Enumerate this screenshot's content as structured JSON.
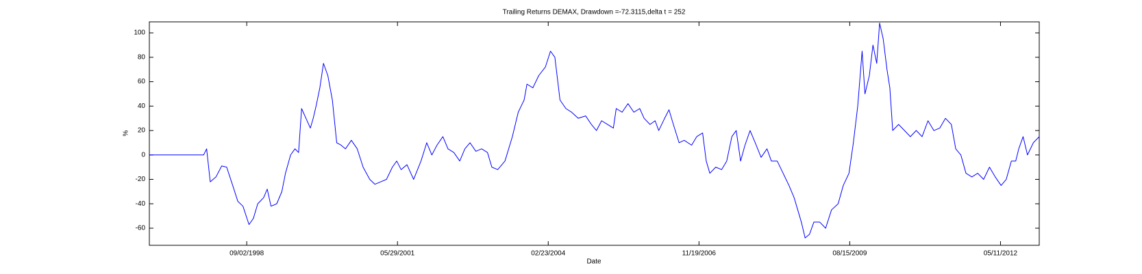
{
  "chart_data": {
    "type": "line",
    "title": "Trailing Returns DEMAX, Drawdown =-72.3115,delta t = 252",
    "xlabel": "Date",
    "ylabel": "%",
    "x": [
      "1996-11-25",
      "1997-11-20",
      "1997-12-10",
      "1998-01-03",
      "1998-02-10",
      "1998-03-20",
      "1998-04-22",
      "1998-06-01",
      "1998-07-05",
      "1998-08-08",
      "1998-09-17",
      "1998-10-16",
      "1998-11-14",
      "1998-12-23",
      "1999-01-16",
      "1999-02-10",
      "1999-03-20",
      "1999-04-23",
      "1999-05-17",
      "1999-06-20",
      "1999-07-19",
      "1999-08-12",
      "1999-09-01",
      "1999-09-30",
      "1999-10-29",
      "1999-11-17",
      "1999-12-06",
      "1999-12-31",
      "2000-01-24",
      "2000-02-22",
      "2000-03-23",
      "2000-04-21",
      "2000-05-20",
      "2000-06-18",
      "2000-07-27",
      "2000-09-04",
      "2000-10-13",
      "2000-11-26",
      "2000-12-30",
      "2001-02-07",
      "2001-03-17",
      "2001-04-25",
      "2001-05-24",
      "2001-06-22",
      "2001-07-31",
      "2001-09-13",
      "2001-11-01",
      "2001-12-09",
      "2002-01-12",
      "2002-02-15",
      "2002-03-26",
      "2002-04-29",
      "2002-06-07",
      "2002-07-16",
      "2002-08-19",
      "2002-09-22",
      "2002-10-31",
      "2002-12-08",
      "2003-01-16",
      "2003-02-14",
      "2003-03-25",
      "2003-05-12",
      "2003-06-30",
      "2003-08-08",
      "2003-09-16",
      "2003-10-05",
      "2003-11-13",
      "2003-12-22",
      "2004-02-04",
      "2004-03-09",
      "2004-04-07",
      "2004-05-11",
      "2004-06-19",
      "2004-07-27",
      "2004-09-09",
      "2004-10-28",
      "2004-12-05",
      "2005-01-08",
      "2005-02-11",
      "2005-03-22",
      "2005-04-30",
      "2005-05-19",
      "2005-06-27",
      "2005-08-05",
      "2005-09-13",
      "2005-10-22",
      "2005-11-20",
      "2005-12-29",
      "2006-02-01",
      "2006-02-25",
      "2006-04-05",
      "2006-05-04",
      "2006-06-02",
      "2006-07-10",
      "2006-08-13",
      "2006-10-01",
      "2006-11-04",
      "2006-12-13",
      "2007-01-06",
      "2007-01-30",
      "2007-03-10",
      "2007-04-18",
      "2007-05-22",
      "2007-06-25",
      "2007-07-24",
      "2007-08-22",
      "2007-09-20",
      "2007-10-24",
      "2007-11-27",
      "2008-01-05",
      "2008-02-13",
      "2008-03-13",
      "2008-04-21",
      "2008-05-30",
      "2008-07-08",
      "2008-08-11",
      "2008-09-04",
      "2008-09-28",
      "2008-10-23",
      "2008-11-21",
      "2008-12-20",
      "2009-01-28",
      "2009-03-08",
      "2009-04-16",
      "2009-05-30",
      "2009-07-03",
      "2009-08-10",
      "2009-09-08",
      "2009-10-07",
      "2009-11-05",
      "2009-11-24",
      "2009-12-23",
      "2010-01-16",
      "2010-02-10",
      "2010-03-01",
      "2010-03-25",
      "2010-04-19",
      "2010-05-08",
      "2010-05-27",
      "2010-07-05",
      "2010-08-13",
      "2010-09-21",
      "2010-10-30",
      "2010-12-08",
      "2011-01-16",
      "2011-02-24",
      "2011-04-04",
      "2011-05-12",
      "2011-06-20",
      "2011-07-19",
      "2011-08-22",
      "2011-09-25",
      "2011-11-03",
      "2011-12-12",
      "2012-01-20",
      "2012-02-28",
      "2012-04-06",
      "2012-05-15",
      "2012-06-18",
      "2012-07-22",
      "2012-08-20",
      "2012-09-09",
      "2012-10-08",
      "2012-11-06",
      "2012-12-15",
      "2013-01-23"
    ],
    "series": [
      {
        "color": "#0000ff",
        "values": [
          0,
          0,
          5,
          -22,
          -18,
          -9,
          -10,
          -25,
          -38,
          -42,
          -57,
          -52,
          -40,
          -35,
          -28,
          -42,
          -40,
          -30,
          -15,
          0,
          5,
          2,
          38,
          30,
          22,
          30,
          40,
          55,
          75,
          65,
          45,
          10,
          8,
          5,
          12,
          5,
          -10,
          -20,
          -24,
          -22,
          -20,
          -10,
          -5,
          -12,
          -8,
          -20,
          -5,
          10,
          0,
          8,
          15,
          5,
          2,
          -5,
          5,
          10,
          3,
          5,
          2,
          -10,
          -12,
          -5,
          15,
          35,
          45,
          58,
          55,
          65,
          72,
          85,
          80,
          45,
          38,
          35,
          30,
          32,
          25,
          20,
          28,
          25,
          22,
          38,
          35,
          42,
          35,
          38,
          30,
          25,
          28,
          20,
          30,
          37,
          25,
          10,
          12,
          8,
          15,
          18,
          -5,
          -15,
          -10,
          -12,
          -5,
          15,
          20,
          -5,
          8,
          20,
          10,
          -2,
          5,
          -5,
          -5,
          -15,
          -25,
          -35,
          -45,
          -55,
          -68,
          -65,
          -55,
          -55,
          -60,
          -45,
          -40,
          -25,
          -15,
          10,
          40,
          85,
          50,
          65,
          90,
          75,
          108,
          95,
          70,
          55,
          20,
          25,
          20,
          15,
          20,
          15,
          28,
          20,
          22,
          30,
          25,
          5,
          0,
          -15,
          -18,
          -15,
          -20,
          -10,
          -18,
          -25,
          -20,
          -5,
          -5,
          5,
          15,
          0,
          10,
          15
        ]
      }
    ],
    "xlim": [
      "1996-11-25",
      "2013-01-23"
    ],
    "xticks": [
      {
        "value": "1998-09-02",
        "label": "09/02/1998"
      },
      {
        "value": "2001-05-29",
        "label": "05/29/2001"
      },
      {
        "value": "2004-02-23",
        "label": "02/23/2004"
      },
      {
        "value": "2006-11-19",
        "label": "11/19/2006"
      },
      {
        "value": "2009-08-15",
        "label": "08/15/2009"
      },
      {
        "value": "2012-05-11",
        "label": "05/11/2012"
      }
    ],
    "ylim": [
      -74,
      109
    ],
    "yticks": [
      -60,
      -40,
      -20,
      0,
      20,
      40,
      60,
      80,
      100
    ]
  }
}
